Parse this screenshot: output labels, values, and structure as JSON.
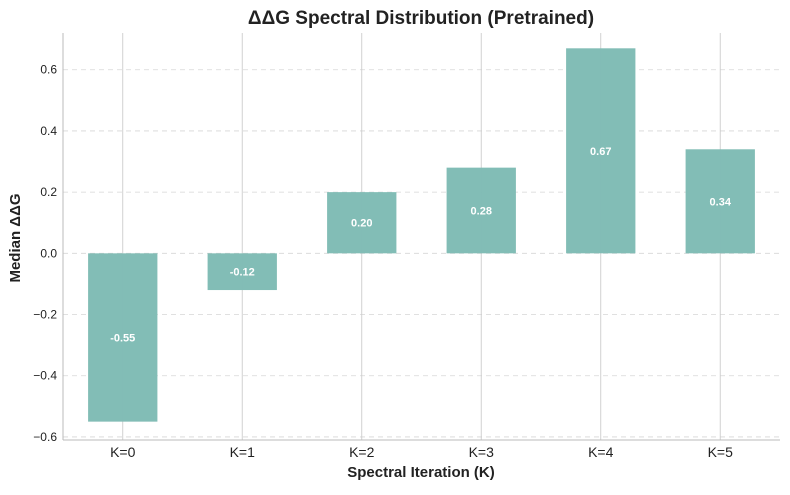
{
  "chart_data": {
    "type": "bar",
    "title": "ΔΔG Spectral Distribution (Pretrained)",
    "xlabel": "Spectral Iteration (K)",
    "ylabel": "Median ΔΔG",
    "categories": [
      "K=0",
      "K=1",
      "K=2",
      "K=3",
      "K=4",
      "K=5"
    ],
    "values": [
      -0.55,
      -0.12,
      0.2,
      0.28,
      0.67,
      0.34
    ],
    "value_labels": [
      "-0.55",
      "-0.12",
      "0.20",
      "0.28",
      "0.67",
      "0.34"
    ],
    "ylim": [
      -0.61,
      0.72
    ],
    "yticks": [
      -0.6,
      -0.4,
      -0.2,
      0.0,
      0.2,
      0.4,
      0.6
    ],
    "ytick_labels": [
      "−0.6",
      "−0.4",
      "−0.2",
      "0.0",
      "0.2",
      "0.4",
      "0.6"
    ],
    "grid": {
      "x": true,
      "y": true,
      "y_style": "dashed"
    },
    "bar_color": "#7fbcb5",
    "grid_color": "#cccccc",
    "legend": "none"
  }
}
